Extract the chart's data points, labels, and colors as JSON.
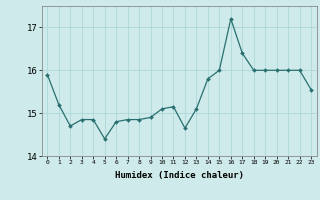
{
  "x": [
    0,
    1,
    2,
    3,
    4,
    5,
    6,
    7,
    8,
    9,
    10,
    11,
    12,
    13,
    14,
    15,
    16,
    17,
    18,
    19,
    20,
    21,
    22,
    23
  ],
  "y": [
    15.9,
    15.2,
    14.7,
    14.85,
    14.85,
    14.4,
    14.8,
    14.85,
    14.85,
    14.9,
    15.1,
    15.15,
    14.65,
    15.1,
    15.8,
    16.0,
    17.2,
    16.4,
    16.0,
    16.0,
    16.0,
    16.0,
    16.0,
    15.55
  ],
  "xlabel": "Humidex (Indice chaleur)",
  "ylim": [
    14,
    17.5
  ],
  "xlim": [
    -0.5,
    23.5
  ],
  "bg_color": "#ceeaea",
  "line_color": "#2a7070",
  "grid_color": "#aed8d8",
  "yticks": [
    14,
    15,
    16,
    17
  ],
  "xticks": [
    0,
    1,
    2,
    3,
    4,
    5,
    6,
    7,
    8,
    9,
    10,
    11,
    12,
    13,
    14,
    15,
    16,
    17,
    18,
    19,
    20,
    21,
    22,
    23
  ]
}
